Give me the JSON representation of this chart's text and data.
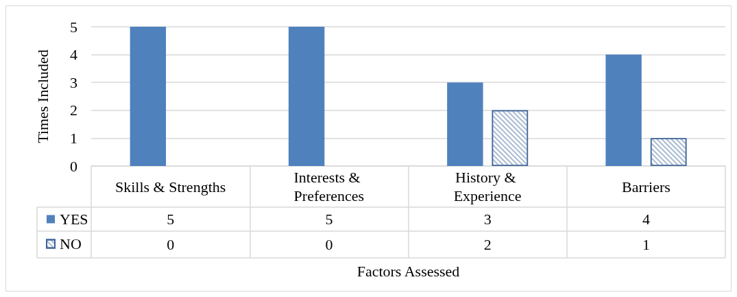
{
  "chart_data": {
    "type": "bar",
    "categories": [
      "Skills & Strengths",
      "Interests & Preferences",
      "History & Experience",
      "Barriers"
    ],
    "series": [
      {
        "name": "YES",
        "color": "#4f81bd",
        "values": [
          5,
          5,
          3,
          4
        ]
      },
      {
        "name": "NO",
        "color": "#3c6398",
        "values": [
          0,
          0,
          2,
          1
        ]
      }
    ],
    "ylim": [
      0,
      5
    ],
    "yticks": [
      0,
      1,
      2,
      3,
      4,
      5
    ],
    "ylabel": "Times Included",
    "xlabel": "Factors Assessed",
    "grid": "y",
    "legend": "bottom left",
    "data_labels": true
  }
}
